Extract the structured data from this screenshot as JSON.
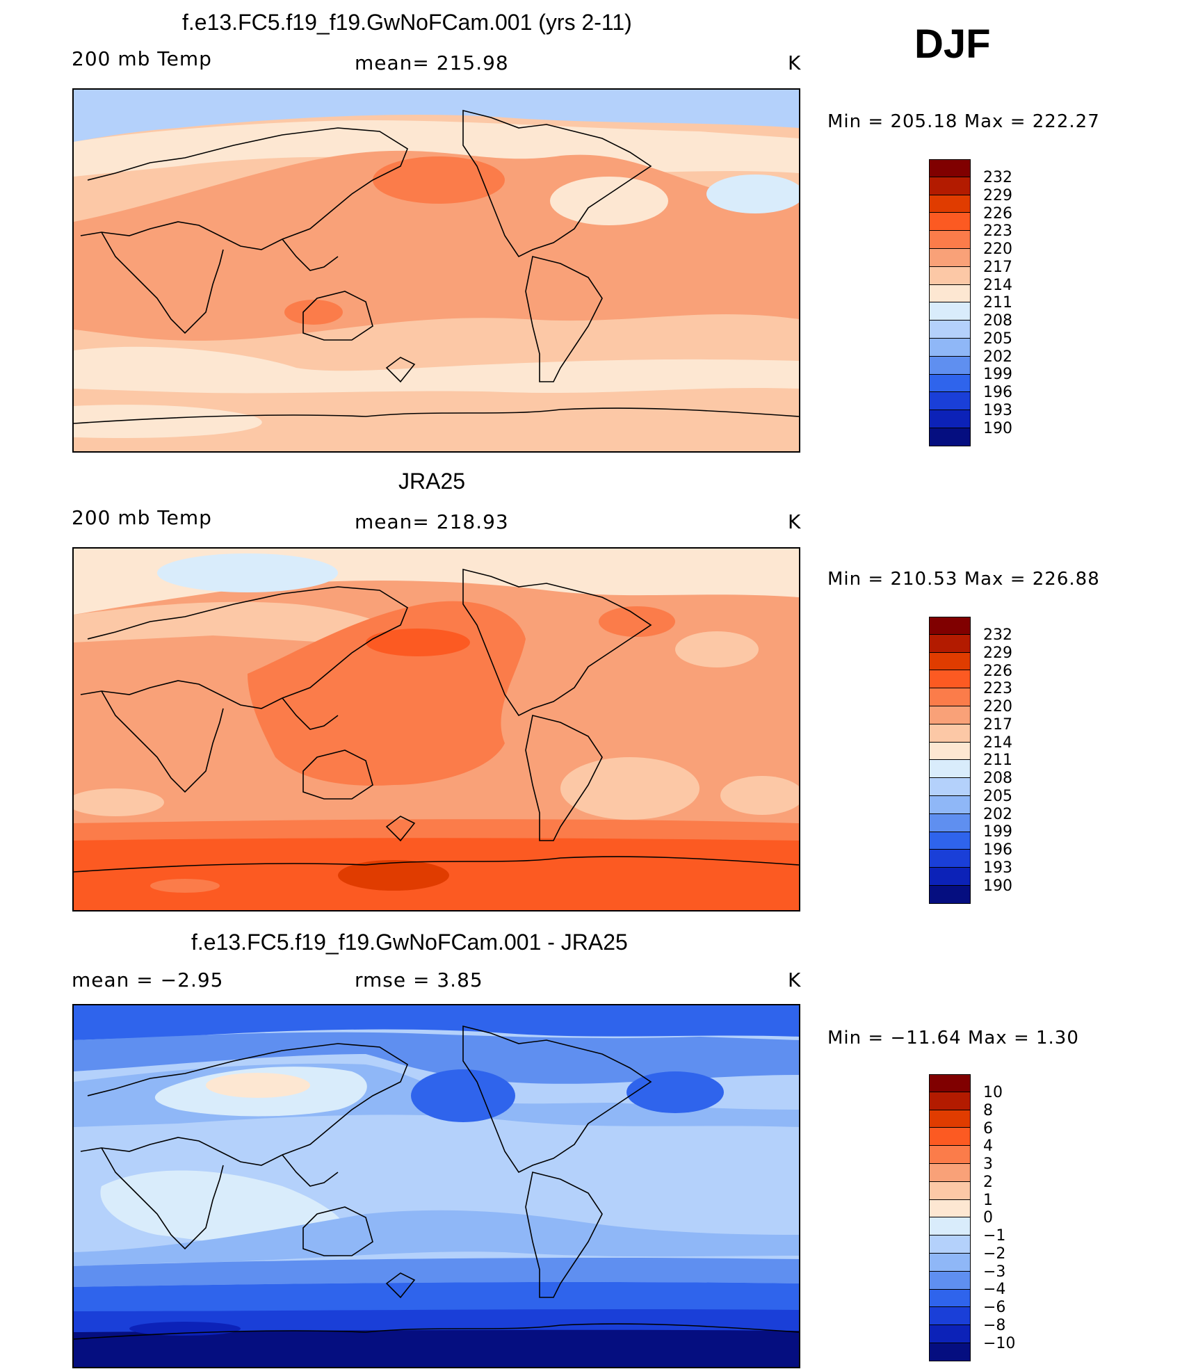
{
  "panels": [
    {
      "title": "f.e13.FC5.f19_f19.GwNoFCam.001 (yrs 2-11)",
      "left_label": "200 mb Temp",
      "center_label": "mean= 215.98",
      "units": "K",
      "min_max": "Min = 205.18 Max = 222.27"
    },
    {
      "title": "JRA25",
      "left_label": "200 mb Temp",
      "center_label": "mean= 218.93",
      "units": "K",
      "min_max": "Min = 210.53 Max = 226.88"
    },
    {
      "title": "f.e13.FC5.f19_f19.GwNoFCam.001 - JRA25",
      "left_label": "mean =    −2.95",
      "center_label": "rmse =     3.85",
      "units": "K",
      "min_max": "Min = −11.64 Max =     1.30"
    }
  ],
  "season": "DJF",
  "colorbars": {
    "temp": {
      "labels": [
        "232",
        "229",
        "226",
        "223",
        "220",
        "217",
        "214",
        "211",
        "208",
        "205",
        "202",
        "199",
        "196",
        "193",
        "190"
      ],
      "colors": [
        "#800000",
        "#b31b00",
        "#e03c00",
        "#fc5a22",
        "#fb7c4a",
        "#f9a178",
        "#fcc8a6",
        "#fde7d2",
        "#d9ecfb",
        "#b4d1fb",
        "#8fb7f7",
        "#5f8ff0",
        "#2f64ec",
        "#1a3fd8",
        "#0c22b8",
        "#050e80"
      ]
    },
    "diff": {
      "labels": [
        "10",
        "8",
        "6",
        "4",
        "3",
        "2",
        "1",
        "0",
        "−1",
        "−2",
        "−3",
        "−4",
        "−6",
        "−8",
        "−10"
      ],
      "colors": [
        "#800000",
        "#b31b00",
        "#e03c00",
        "#fc5a22",
        "#fb7c4a",
        "#f9a178",
        "#fcc8a6",
        "#fde7d2",
        "#d9ecfb",
        "#b4d1fb",
        "#8fb7f7",
        "#5f8ff0",
        "#2f64ec",
        "#1a3fd8",
        "#0c22b8",
        "#050e80"
      ]
    }
  }
}
